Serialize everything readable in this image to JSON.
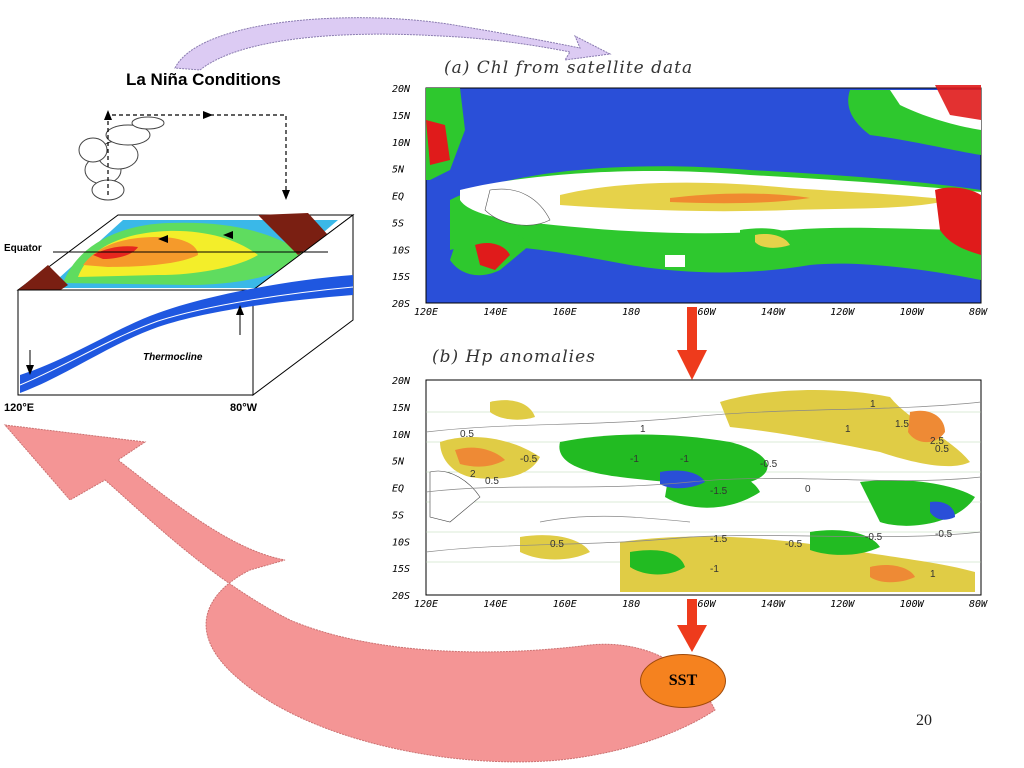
{
  "slide": {
    "page_number": "20"
  },
  "la_nina_diagram": {
    "title": "La Niña Conditions",
    "equator_label": "Equator",
    "thermocline_label": "Thermocline",
    "left_longitude": "120°E",
    "right_longitude": "80°W"
  },
  "map_a": {
    "title": "(a) Chl from satellite data",
    "lat_ticks": [
      "20N",
      "15N",
      "10N",
      "5N",
      "EQ",
      "5S",
      "10S",
      "15S",
      "20S"
    ],
    "lon_ticks": [
      "120E",
      "140E",
      "160E",
      "180",
      "160W",
      "140W",
      "120W",
      "100W",
      "80W"
    ]
  },
  "map_b": {
    "title": "(b) Hp  anomalies",
    "lat_ticks": [
      "20N",
      "15N",
      "10N",
      "5N",
      "EQ",
      "5S",
      "10S",
      "15S",
      "20S"
    ],
    "lon_ticks": [
      "120E",
      "140E",
      "160E",
      "180",
      "160W",
      "140W",
      "120W",
      "100W",
      "80W"
    ],
    "contour_labels": [
      "0.5",
      "-0.5",
      "0.5",
      "1",
      "2",
      "-1",
      "-1",
      "-1.5",
      "-0.5",
      "1",
      "1.5",
      "0.5",
      "1",
      "-0.5",
      "0.5",
      "-1",
      "1",
      "-0.5",
      "0",
      "-0.5",
      "2.5",
      "-1.5"
    ]
  },
  "sst_node": {
    "label": "SST"
  },
  "colors": {
    "ocean_blue": "#2a4fd8",
    "chl_green": "#2ec82e",
    "chl_yellow": "#e6d24a",
    "chl_orange": "#f08a30",
    "chl_red": "#e01b1b",
    "hp_yellow": "#e0cc45",
    "hp_green": "#22bb22",
    "hp_orange": "#ee8a35",
    "flow_arrow_red": "#ee3b1c",
    "sst_fill": "#f5821f",
    "return_arrow": "#f08a8a",
    "top_arrow": "#d8c8f0"
  }
}
